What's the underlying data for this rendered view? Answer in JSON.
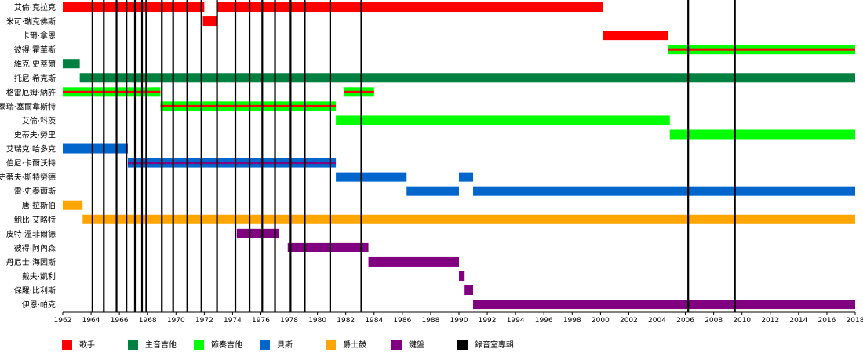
{
  "chart_data": {
    "type": "timeline",
    "x_axis": {
      "min": 1962,
      "max": 2018,
      "ticks": [
        1962,
        1964,
        1966,
        1968,
        1970,
        1972,
        1974,
        1976,
        1978,
        1980,
        1982,
        1984,
        1986,
        1988,
        1990,
        1992,
        1994,
        1996,
        1998,
        2000,
        2002,
        2004,
        2006,
        2008,
        2010,
        2012,
        2014,
        2016,
        2018
      ]
    },
    "categories": [
      {
        "key": "vocals",
        "label": "歌手",
        "color": "#ff0000"
      },
      {
        "key": "lead_guitar",
        "label": "主音吉他",
        "color": "#008040"
      },
      {
        "key": "rhythm_guitar",
        "label": "節奏吉他",
        "color": "#00ff00"
      },
      {
        "key": "bass",
        "label": "貝斯",
        "color": "#0066cc"
      },
      {
        "key": "drums",
        "label": "爵士鼓",
        "color": "#ffa500"
      },
      {
        "key": "keyboards",
        "label": "鍵盤",
        "color": "#800080"
      },
      {
        "key": "albums",
        "label": "錄音室專輯",
        "color": "#000000"
      }
    ],
    "members": [
      {
        "name": "艾倫·克拉克",
        "spans": [
          {
            "start": 1962.0,
            "end": 1972.0,
            "role": "vocals"
          },
          {
            "start": 1972.9,
            "end": 2000.2,
            "role": "vocals"
          }
        ]
      },
      {
        "name": "米可·瑞克佛斯",
        "spans": [
          {
            "start": 1971.9,
            "end": 1972.9,
            "role": "vocals"
          }
        ]
      },
      {
        "name": "卡爾·拿恩",
        "spans": [
          {
            "start": 2000.2,
            "end": 2004.8,
            "role": "vocals"
          }
        ]
      },
      {
        "name": "彼得·霍華斯",
        "spans": [
          {
            "start": 2004.8,
            "end": 2018.0,
            "role": "rhythm_guitar",
            "secondary": "vocals"
          }
        ]
      },
      {
        "name": "維克·史蒂爾",
        "spans": [
          {
            "start": 1962.0,
            "end": 1963.2,
            "role": "lead_guitar"
          }
        ]
      },
      {
        "name": "托尼·希克斯",
        "spans": [
          {
            "start": 1963.2,
            "end": 2018.0,
            "role": "lead_guitar"
          }
        ]
      },
      {
        "name": "格雷厄姆·納許",
        "spans": [
          {
            "start": 1962.0,
            "end": 1968.9,
            "role": "rhythm_guitar",
            "secondary": "vocals"
          },
          {
            "start": 1981.9,
            "end": 1984.0,
            "role": "rhythm_guitar",
            "secondary": "vocals"
          }
        ]
      },
      {
        "name": "泰瑞·塞爾韋斯特",
        "spans": [
          {
            "start": 1968.9,
            "end": 1981.3,
            "role": "rhythm_guitar",
            "secondary": "vocals"
          }
        ]
      },
      {
        "name": "艾倫·科茨",
        "spans": [
          {
            "start": 1981.3,
            "end": 2004.9,
            "role": "rhythm_guitar"
          }
        ]
      },
      {
        "name": "史蒂夫·勞里",
        "spans": [
          {
            "start": 2004.9,
            "end": 2018.0,
            "role": "rhythm_guitar"
          }
        ]
      },
      {
        "name": "艾瑞克·哈多克",
        "spans": [
          {
            "start": 1962.0,
            "end": 1966.6,
            "role": "bass"
          }
        ]
      },
      {
        "name": "伯尼·卡爾沃特",
        "spans": [
          {
            "start": 1966.6,
            "end": 1981.3,
            "role": "bass",
            "secondary": "keyboards"
          }
        ]
      },
      {
        "name": "史蒂夫·斯特勞德",
        "spans": [
          {
            "start": 1981.3,
            "end": 1986.3,
            "role": "bass"
          },
          {
            "start": 1990.0,
            "end": 1991.0,
            "role": "bass"
          }
        ]
      },
      {
        "name": "雷·史泰爾斯",
        "spans": [
          {
            "start": 1986.3,
            "end": 1990.0,
            "role": "bass"
          },
          {
            "start": 1991.0,
            "end": 2018.0,
            "role": "bass"
          }
        ]
      },
      {
        "name": "唐·拉斯伯",
        "spans": [
          {
            "start": 1962.0,
            "end": 1963.4,
            "role": "drums"
          }
        ]
      },
      {
        "name": "鮑比·艾略特",
        "spans": [
          {
            "start": 1963.4,
            "end": 2018.0,
            "role": "drums"
          }
        ]
      },
      {
        "name": "皮特·溫菲爾德",
        "spans": [
          {
            "start": 1974.3,
            "end": 1977.3,
            "role": "keyboards"
          }
        ]
      },
      {
        "name": "彼得·阿內森",
        "spans": [
          {
            "start": 1977.9,
            "end": 1983.6,
            "role": "keyboards"
          }
        ]
      },
      {
        "name": "丹尼士·海因斯",
        "spans": [
          {
            "start": 1983.6,
            "end": 1990.0,
            "role": "keyboards"
          }
        ]
      },
      {
        "name": "戴夫·凱利",
        "spans": [
          {
            "start": 1990.0,
            "end": 1990.4,
            "role": "keyboards"
          }
        ]
      },
      {
        "name": "保羅·比利斯",
        "spans": [
          {
            "start": 1990.4,
            "end": 1991.0,
            "role": "keyboards"
          }
        ]
      },
      {
        "name": "伊恩·帕克",
        "spans": [
          {
            "start": 1991.0,
            "end": 2018.0,
            "role": "keyboards"
          }
        ]
      }
    ],
    "albums": [
      1964.1,
      1964.9,
      1965.8,
      1966.5,
      1967.1,
      1967.6,
      1967.9,
      1969.0,
      1969.8,
      1970.8,
      1971.8,
      1972.9,
      1974.2,
      1975.2,
      1976.1,
      1977.0,
      1978.1,
      1979.1,
      1980.9,
      1983.1,
      2006.2,
      2009.5
    ]
  }
}
